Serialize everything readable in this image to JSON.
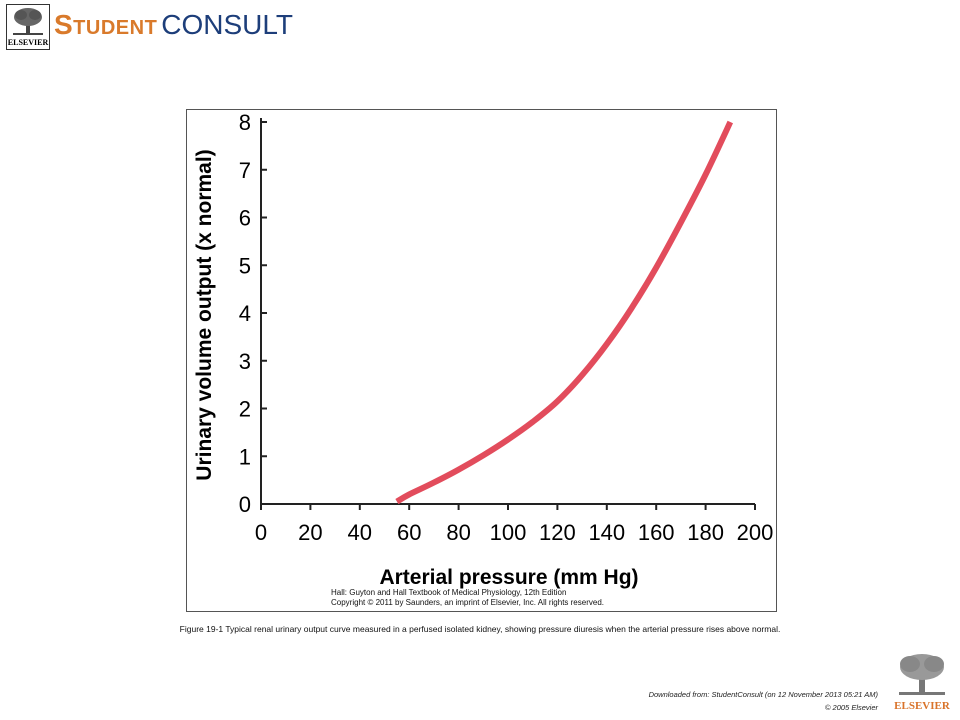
{
  "header": {
    "publisher_logo_text": "ELSEVIER",
    "brand_part1": "Student",
    "brand_part2": "CONSULT",
    "brand_color_1": "#d97a2b",
    "brand_color_2": "#1d3e7a"
  },
  "chart_data": {
    "type": "line",
    "title": "",
    "xlabel": "Arterial pressure (mm Hg)",
    "ylabel": "Urinary volume output (x normal)",
    "xlim": [
      0,
      200
    ],
    "ylim": [
      0,
      8
    ],
    "x_ticks": [
      "0",
      "20",
      "40",
      "60",
      "80",
      "100",
      "120",
      "140",
      "160",
      "180",
      "200"
    ],
    "y_ticks": [
      "0",
      "1",
      "2",
      "3",
      "4",
      "5",
      "6",
      "7",
      "8"
    ],
    "grid": false,
    "legend": "none",
    "series": [
      {
        "color": "#e24c5c",
        "x": [
          55,
          60,
          70,
          80,
          90,
          100,
          110,
          120,
          130,
          140,
          150,
          160,
          170,
          180,
          190
        ],
        "y": [
          0.05,
          0.2,
          0.45,
          0.72,
          1.02,
          1.35,
          1.72,
          2.15,
          2.7,
          3.35,
          4.1,
          4.95,
          5.9,
          6.9,
          8.0
        ]
      }
    ]
  },
  "figure_credit": {
    "line1": "Hall: Guyton and Hall Textbook of Medical Physiology, 12th Edition",
    "line2": "Copyright © 2011 by Saunders, an imprint of Elsevier, Inc. All rights reserved."
  },
  "caption": "Figure 19-1 Typical renal urinary output curve measured in a perfused isolated kidney, showing pressure diuresis when the arterial pressure rises above normal.",
  "footer": {
    "downloaded": "Downloaded from: StudentConsult (on 12 November 2013 05:21 AM)",
    "copyright": "© 2005 Elsevier",
    "publisher_logo_text": "ELSEVIER"
  }
}
